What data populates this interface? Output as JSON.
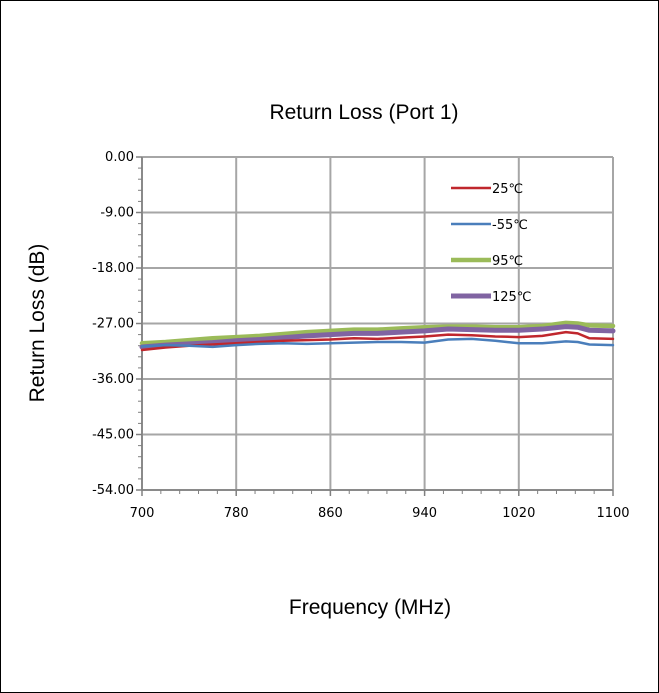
{
  "chart_data": {
    "type": "line",
    "title": "Return Loss (Port 1)",
    "xlabel": "Frequency (MHz)",
    "ylabel": "Return Loss (dB)",
    "xlim": [
      700,
      1100
    ],
    "ylim": [
      -54,
      0
    ],
    "x_ticks": [
      700,
      780,
      860,
      940,
      1020,
      1100
    ],
    "x_tick_labels": [
      "700",
      "780",
      "860",
      "940",
      "1020",
      "1100"
    ],
    "y_ticks": [
      0,
      -9,
      -18,
      -27,
      -36,
      -45,
      -54
    ],
    "y_tick_labels": [
      "0.00",
      "-9.00",
      "-18.00",
      "-27.00",
      "-36.00",
      "-45.00",
      "-54.00"
    ],
    "grid": true,
    "legend_position": "top-right",
    "series": [
      {
        "name": "25℃",
        "color": "#c0272d",
        "x": [
          700,
          720,
          740,
          760,
          780,
          800,
          820,
          840,
          860,
          880,
          900,
          920,
          940,
          960,
          980,
          1000,
          1020,
          1040,
          1060,
          1070,
          1080,
          1100
        ],
        "y": [
          -31.3,
          -30.9,
          -30.6,
          -30.4,
          -30.2,
          -30.0,
          -29.8,
          -29.7,
          -29.6,
          -29.4,
          -29.5,
          -29.3,
          -29.1,
          -28.8,
          -28.9,
          -29.1,
          -29.2,
          -29.0,
          -28.4,
          -28.6,
          -29.4,
          -29.5
        ]
      },
      {
        "name": "-55℃",
        "color": "#4a7ebb",
        "x": [
          700,
          720,
          740,
          760,
          780,
          800,
          820,
          840,
          860,
          880,
          900,
          920,
          940,
          960,
          980,
          1000,
          1020,
          1040,
          1060,
          1070,
          1080,
          1100
        ],
        "y": [
          -30.7,
          -30.5,
          -30.6,
          -30.8,
          -30.5,
          -30.3,
          -30.2,
          -30.3,
          -30.2,
          -30.1,
          -30.0,
          -30.0,
          -30.1,
          -29.6,
          -29.5,
          -29.8,
          -30.2,
          -30.2,
          -29.9,
          -30.0,
          -30.4,
          -30.5
        ]
      },
      {
        "name": "95℃",
        "color": "#9bbb59",
        "x": [
          700,
          720,
          740,
          760,
          780,
          800,
          820,
          840,
          860,
          880,
          900,
          920,
          940,
          960,
          980,
          1000,
          1020,
          1040,
          1060,
          1070,
          1080,
          1100
        ],
        "y": [
          -30.2,
          -30.0,
          -29.7,
          -29.4,
          -29.2,
          -29.0,
          -28.7,
          -28.4,
          -28.2,
          -28.0,
          -28.0,
          -27.8,
          -27.6,
          -27.5,
          -27.5,
          -27.6,
          -27.6,
          -27.4,
          -26.9,
          -27.0,
          -27.3,
          -27.4
        ]
      },
      {
        "name": "125℃",
        "color": "#8064a2",
        "x": [
          700,
          720,
          740,
          760,
          780,
          800,
          820,
          840,
          860,
          880,
          900,
          920,
          940,
          960,
          980,
          1000,
          1020,
          1040,
          1060,
          1070,
          1080,
          1100
        ],
        "y": [
          -30.8,
          -30.5,
          -30.3,
          -30.1,
          -29.8,
          -29.6,
          -29.3,
          -29.0,
          -28.8,
          -28.6,
          -28.6,
          -28.4,
          -28.2,
          -27.9,
          -28.0,
          -28.1,
          -28.1,
          -27.9,
          -27.5,
          -27.6,
          -28.1,
          -28.2
        ]
      }
    ]
  }
}
